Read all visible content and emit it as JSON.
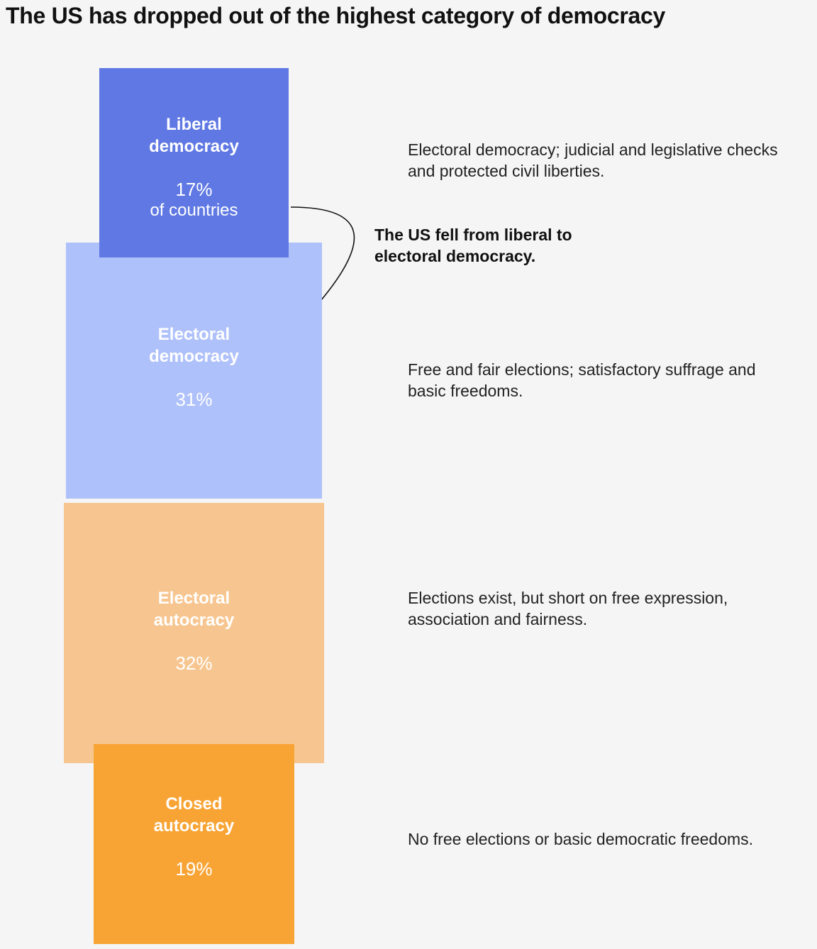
{
  "title": "The US has dropped out of the highest category of democracy",
  "chart_data": {
    "type": "proportional-area",
    "title": "The US has dropped out of the highest category of democracy",
    "unit": "% of countries",
    "categories": [
      {
        "label": "Liberal democracy",
        "value": 17,
        "pct_text": "17%",
        "sub": "of countries",
        "color": "#5f78e3",
        "description": "Electoral democracy; judicial and legislative checks and protected civil liberties."
      },
      {
        "label": "Electoral democracy",
        "value": 31,
        "pct_text": "31%",
        "color": "#afc1fa",
        "description": "Free and fair elections; satisfactory suffrage and basic freedoms."
      },
      {
        "label": "Electoral autocracy",
        "value": 32,
        "pct_text": "32%",
        "color": "#f7c690",
        "description": "Elections exist, but short on free expression, association and fairness."
      },
      {
        "label": "Closed autocracy",
        "value": 19,
        "pct_text": "19%",
        "color": "#f8a435",
        "description": "No free elections or basic democratic freedoms."
      }
    ],
    "annotation": "The US fell from liberal to electoral democracy."
  }
}
